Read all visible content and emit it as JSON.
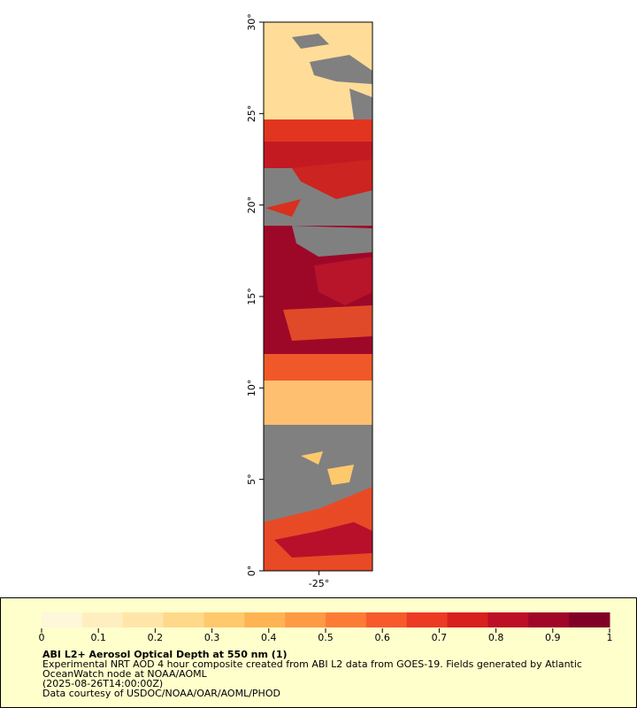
{
  "map": {
    "lat_range": [
      0,
      30
    ],
    "lon_range": [
      -26.5,
      -23.55
    ],
    "lat_ticks": [
      {
        "value": 0,
        "label": "0°"
      },
      {
        "value": 5,
        "label": "5°"
      },
      {
        "value": 10,
        "label": "10°"
      },
      {
        "value": 15,
        "label": "15°"
      },
      {
        "value": 20,
        "label": "20°"
      },
      {
        "value": 25,
        "label": "25°"
      },
      {
        "value": 30,
        "label": "30°"
      }
    ],
    "lon_ticks": [
      {
        "value": -25,
        "label": "-25°"
      }
    ]
  },
  "colorbar": {
    "range": [
      0,
      1
    ],
    "ticks": [
      0,
      0.1,
      0.2,
      0.3,
      0.4,
      0.5,
      0.6,
      0.7,
      0.8,
      0.9,
      1
    ],
    "colors": [
      "#fff7d9",
      "#ffefc0",
      "#ffe6a8",
      "#fed98a",
      "#fec96c",
      "#feb452",
      "#fd9a43",
      "#fc7c36",
      "#f85a2c",
      "#ec3a25",
      "#d8201f",
      "#bd0f26",
      "#a00628",
      "#800026"
    ]
  },
  "legend": {
    "title": "ABI L2+ Aerosol Optical Depth at 550 nm (1)",
    "lines": [
      "Experimental NRT AOD 4 hour composite created from ABI L2 data from GOES-19. Fields generated by Atlantic",
      "OceanWatch node at NOAA/AOML",
      "(2025-08-26T14:00:00Z)",
      "Data courtesy of USDOC/NOAA/OAR/AOML/PHOD"
    ]
  }
}
